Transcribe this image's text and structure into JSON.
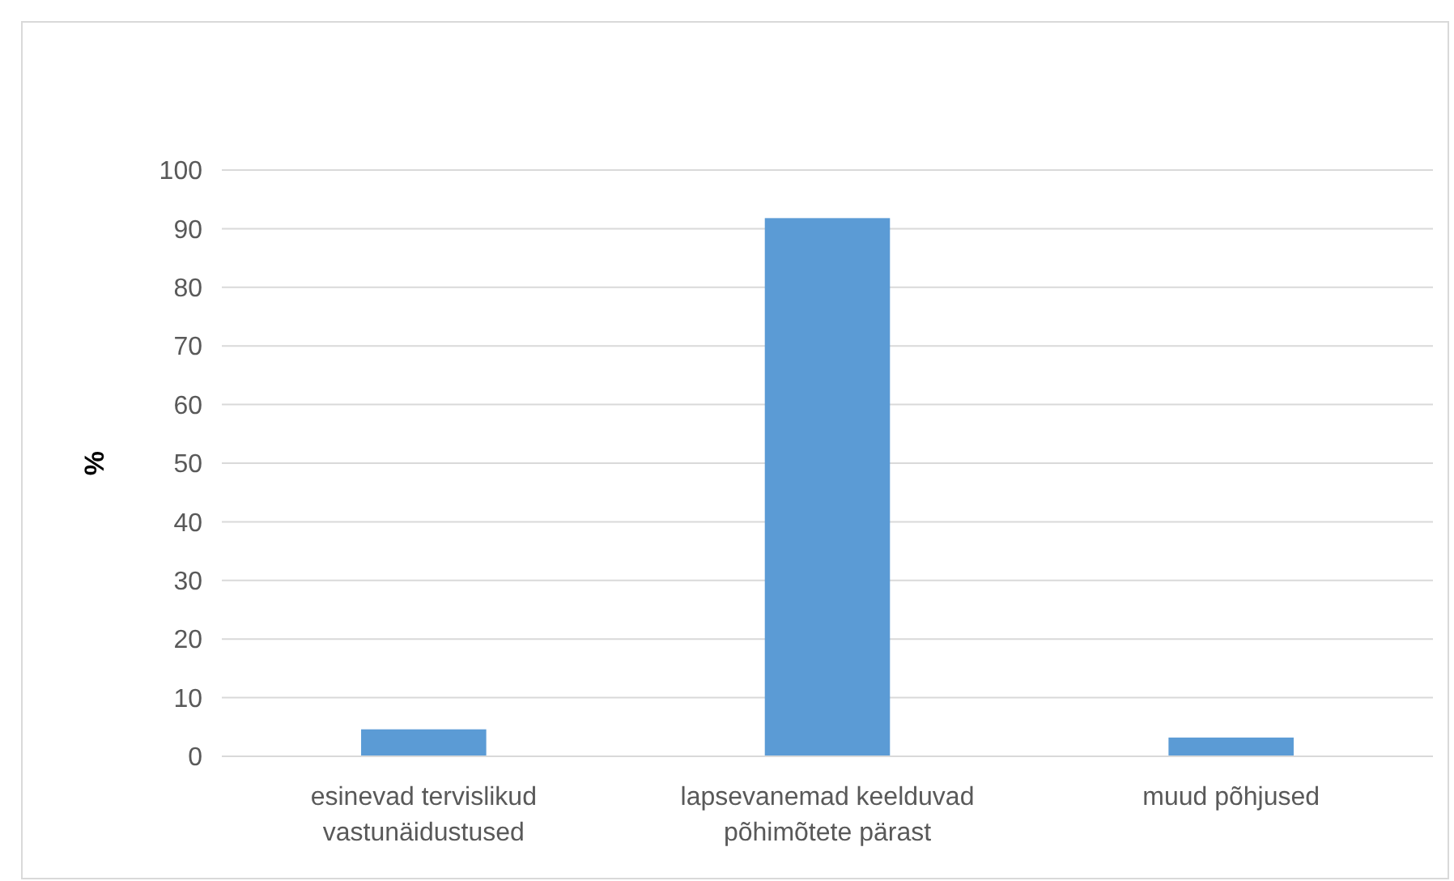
{
  "chart_data": {
    "type": "bar",
    "ylabel": "%",
    "categories": [
      "esinevad tervislikud vastunäidustused",
      "lapsevanemad keelduvad põhimõtete pärast",
      "muud põhjused"
    ],
    "values": [
      4.6,
      91.8,
      3.2
    ],
    "color": "#5b9bd5",
    "ylim": [
      0,
      100
    ],
    "yticks": [
      0,
      10,
      20,
      30,
      40,
      50,
      60,
      70,
      80,
      90,
      100
    ],
    "grid": "y"
  }
}
